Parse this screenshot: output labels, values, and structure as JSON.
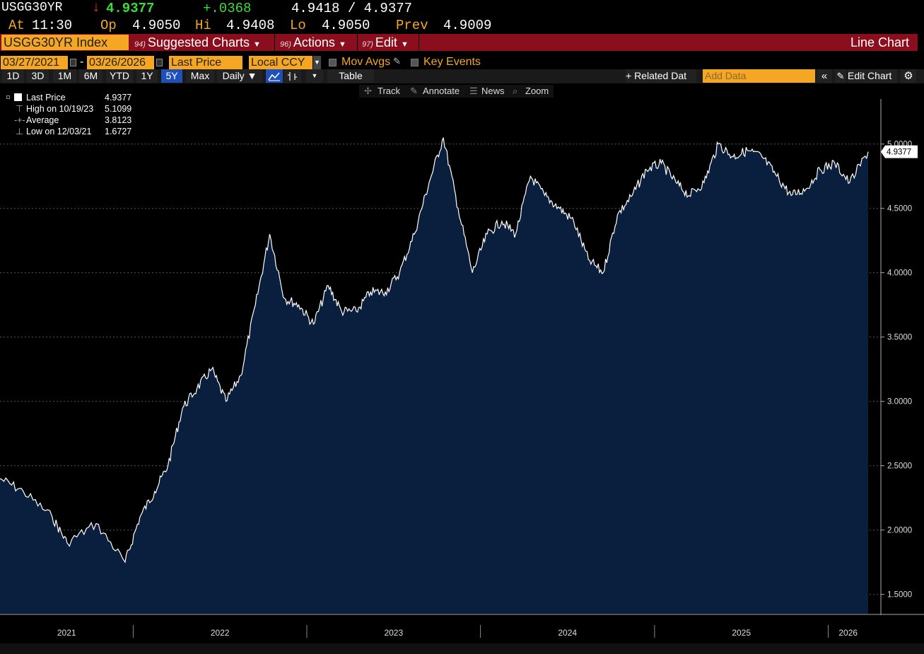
{
  "header": {
    "ticker": "USGG30YR",
    "direction_arrow": "↓",
    "last": "4.9377",
    "change": "+.0368",
    "bid_ask": "4.9418 / 4.9377",
    "at_label": "At",
    "time": "11:30",
    "op_label": "Op",
    "op": "4.9050",
    "hi_label": "Hi",
    "hi": "4.9408",
    "lo_label": "Lo",
    "lo": "4.9050",
    "prev_label": "Prev",
    "prev": "4.9009"
  },
  "menubar": {
    "security": "USGG30YR Index",
    "suggested_num": "94)",
    "suggested": "Suggested Charts",
    "actions_num": "96)",
    "actions": "Actions",
    "edit_num": "97)",
    "edit": "Edit",
    "chart_type": "Line Chart"
  },
  "controls": {
    "start_date": "03/27/2021",
    "dash": "-",
    "end_date": "03/26/2026",
    "field": "Last Price",
    "currency": "Local CCY",
    "mov_avgs": "Mov Avgs",
    "key_events": "Key Events"
  },
  "toolbar": {
    "periods": [
      "1D",
      "3D",
      "1M",
      "6M",
      "YTD",
      "1Y",
      "5Y",
      "Max"
    ],
    "selected_period": "5Y",
    "frequency": "Daily ▼",
    "table": "Table",
    "related_data": "+ Related Dat",
    "add_data_placeholder": "Add Data",
    "edit_chart": "Edit Chart"
  },
  "tools": {
    "track": "Track",
    "annotate": "Annotate",
    "news": "News",
    "zoom": "Zoom"
  },
  "legend": {
    "last_label": "Last Price",
    "last_value": "4.9377",
    "high_label": "High on 10/19/23",
    "high_value": "5.1099",
    "avg_label": "Average",
    "avg_value": "3.8123",
    "low_label": "Low on 12/03/21",
    "low_value": "1.6727"
  },
  "colors": {
    "amber": "#f5a623",
    "menubar": "#8b0e1e",
    "area_fill": "#0a1f3d",
    "up": "#3cdb3c",
    "down": "#ff3030"
  },
  "chart_data": {
    "type": "area",
    "title": "",
    "series": [
      {
        "name": "Last Price",
        "x": [
          "2021-03",
          "2021-05",
          "2021-07",
          "2021-08",
          "2021-10",
          "2021-12",
          "2022-01",
          "2022-02",
          "2022-03",
          "2022-04",
          "2022-05",
          "2022-06",
          "2022-07",
          "2022-08",
          "2022-09",
          "2022-10",
          "2022-11",
          "2022-12",
          "2023-01",
          "2023-02",
          "2023-03",
          "2023-04",
          "2023-05",
          "2023-06",
          "2023-07",
          "2023-08",
          "2023-09",
          "2023-10",
          "2023-11",
          "2023-12",
          "2024-01",
          "2024-02",
          "2024-03",
          "2024-04",
          "2024-05",
          "2024-06",
          "2024-07",
          "2024-08",
          "2024-09",
          "2024-10",
          "2024-11",
          "2024-12",
          "2025-01",
          "2025-02",
          "2025-03",
          "2025-04",
          "2025-05",
          "2025-06",
          "2025-07",
          "2025-08",
          "2025-09",
          "2025-10",
          "2025-11",
          "2025-12",
          "2026-01",
          "2026-02",
          "2026-03"
        ],
        "values": [
          2.4,
          2.3,
          2.1,
          1.9,
          2.05,
          1.75,
          2.1,
          2.3,
          2.5,
          2.95,
          3.1,
          3.25,
          3.0,
          3.2,
          3.75,
          4.3,
          3.8,
          3.75,
          3.6,
          3.9,
          3.7,
          3.7,
          3.85,
          3.85,
          4.0,
          4.3,
          4.7,
          5.05,
          4.5,
          4.0,
          4.3,
          4.4,
          4.3,
          4.75,
          4.6,
          4.5,
          4.4,
          4.1,
          4.0,
          4.45,
          4.6,
          4.8,
          4.85,
          4.7,
          4.6,
          4.7,
          5.0,
          4.9,
          4.95,
          4.9,
          4.75,
          4.6,
          4.65,
          4.8,
          4.85,
          4.7,
          4.94
        ]
      }
    ],
    "x_ticks": [
      "2021",
      "2022",
      "2023",
      "2024",
      "2025",
      "2026"
    ],
    "y_ticks": [
      "1.5000",
      "2.0000",
      "2.5000",
      "3.0000",
      "3.5000",
      "4.0000",
      "4.5000",
      "5.0000"
    ],
    "ylim": [
      1.35,
      5.35
    ],
    "last_value_label": "4.9377",
    "grid": true
  }
}
